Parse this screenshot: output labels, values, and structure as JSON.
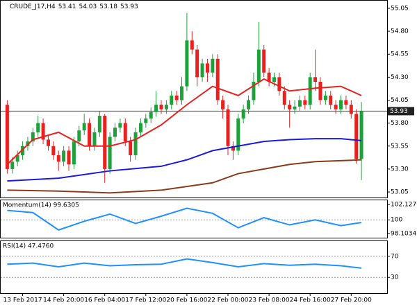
{
  "chart_data": [
    {
      "type": "candlestick",
      "title": "CRUDE_J17,H4",
      "header_values": [
        53.41,
        54.03,
        53.18,
        53.93
      ],
      "up_color": "#1ea03a",
      "down_color": "#e8201f",
      "open": [
        54.0,
        53.3,
        53.38,
        53.45,
        53.55,
        53.6,
        53.7,
        53.8,
        53.62,
        53.55,
        53.45,
        53.38,
        53.5,
        53.35,
        53.6,
        53.72,
        53.8,
        53.55,
        53.7,
        53.88,
        53.3,
        53.65,
        53.75,
        53.8,
        53.6,
        53.45,
        53.7,
        53.8,
        53.85,
        53.92,
        54.0,
        53.95,
        54.0,
        54.1,
        54.05,
        54.2,
        54.7,
        54.6,
        54.3,
        54.45,
        54.35,
        54.5,
        54.05,
        53.95,
        53.55,
        53.5,
        53.85,
        53.95,
        54.05,
        54.25,
        54.6,
        54.35,
        54.25,
        54.3,
        54.15,
        54.0,
        53.95,
        53.98,
        54.05,
        54.0,
        54.3,
        54.25,
        54.05,
        54.1,
        54.0,
        53.95,
        54.05,
        54.0,
        53.9,
        53.41
      ],
      "high": [
        54.05,
        53.43,
        53.5,
        53.6,
        53.65,
        53.75,
        53.88,
        53.85,
        53.67,
        53.6,
        53.5,
        53.55,
        53.55,
        53.65,
        53.77,
        53.9,
        53.85,
        53.75,
        53.93,
        53.9,
        53.7,
        53.8,
        53.85,
        53.85,
        53.65,
        53.75,
        53.85,
        53.9,
        53.97,
        54.15,
        54.05,
        54.05,
        54.15,
        54.15,
        54.3,
        55.0,
        54.8,
        54.65,
        54.5,
        54.5,
        54.55,
        54.55,
        54.1,
        54.0,
        53.6,
        53.9,
        54.0,
        54.1,
        54.35,
        54.9,
        54.65,
        54.4,
        54.35,
        54.35,
        54.2,
        54.05,
        54.05,
        54.1,
        54.1,
        54.35,
        54.6,
        54.3,
        54.15,
        54.15,
        54.05,
        54.1,
        54.1,
        54.05,
        53.95,
        54.03
      ],
      "low": [
        53.25,
        53.25,
        53.33,
        53.4,
        53.5,
        53.55,
        53.65,
        53.57,
        53.5,
        53.4,
        53.28,
        53.33,
        53.28,
        53.3,
        53.55,
        53.67,
        53.5,
        53.5,
        53.65,
        53.15,
        53.25,
        53.6,
        53.7,
        53.55,
        53.38,
        53.4,
        53.65,
        53.75,
        53.8,
        53.87,
        53.9,
        53.9,
        53.95,
        54.0,
        54.0,
        54.15,
        54.55,
        54.2,
        54.25,
        54.25,
        54.3,
        54.0,
        53.85,
        53.45,
        53.4,
        53.45,
        53.8,
        53.9,
        54.0,
        54.2,
        54.3,
        54.2,
        54.2,
        54.1,
        53.95,
        53.75,
        53.9,
        53.93,
        53.95,
        53.95,
        54.15,
        54.0,
        54.0,
        53.95,
        53.9,
        53.9,
        53.95,
        53.85,
        53.36,
        53.18
      ],
      "close": [
        53.3,
        53.38,
        53.45,
        53.55,
        53.6,
        53.7,
        53.8,
        53.62,
        53.55,
        53.45,
        53.38,
        53.5,
        53.35,
        53.6,
        53.72,
        53.8,
        53.55,
        53.7,
        53.88,
        53.3,
        53.65,
        53.75,
        53.8,
        53.6,
        53.45,
        53.7,
        53.8,
        53.85,
        53.92,
        54.0,
        53.95,
        54.0,
        54.1,
        54.05,
        54.2,
        54.7,
        54.6,
        54.3,
        54.45,
        54.35,
        54.5,
        54.05,
        53.95,
        53.55,
        53.5,
        53.85,
        53.95,
        54.05,
        54.25,
        54.6,
        54.35,
        54.25,
        54.3,
        54.15,
        54.0,
        53.95,
        53.98,
        54.05,
        54.0,
        54.3,
        54.25,
        54.05,
        54.1,
        54.0,
        53.95,
        54.05,
        54.0,
        53.9,
        53.41,
        53.93
      ],
      "series": [
        {
          "color": "#e8201f",
          "x": [
            0,
            5,
            10,
            15,
            20,
            25,
            30,
            35,
            40,
            45,
            50,
            55,
            60,
            65,
            69
          ],
          "values": [
            53.35,
            53.62,
            53.7,
            53.55,
            53.55,
            53.62,
            53.78,
            54.0,
            54.2,
            54.1,
            54.28,
            54.15,
            54.18,
            54.2,
            54.1
          ]
        },
        {
          "color": "#1a1adc",
          "x": [
            0,
            10,
            20,
            30,
            35,
            40,
            45,
            50,
            55,
            60,
            65,
            69
          ],
          "values": [
            53.17,
            53.2,
            53.28,
            53.33,
            53.4,
            53.5,
            53.55,
            53.6,
            53.62,
            53.63,
            53.63,
            53.61
          ]
        },
        {
          "color": "#8b3a1a",
          "x": [
            0,
            10,
            20,
            30,
            40,
            45,
            50,
            55,
            60,
            69
          ],
          "values": [
            53.07,
            53.06,
            53.04,
            53.07,
            53.15,
            53.25,
            53.3,
            53.35,
            53.38,
            53.4
          ]
        }
      ],
      "last_price": 53.93,
      "xlim": [
        -1,
        74
      ],
      "ylim": [
        52.99,
        55.14
      ],
      "yticks": [
        55.05,
        {
          "value": 54.8,
          "label": "54.80"
        },
        54.55,
        {
          "value": 54.3,
          "label": "54.30"
        },
        54.05,
        {
          "value": 53.8,
          "label": "53.80"
        },
        53.55,
        {
          "value": 53.3,
          "label": "53.30"
        },
        53.05
      ],
      "xticks": [
        {
          "value": 3,
          "label": "13 Feb 2017"
        },
        {
          "value": 11,
          "label": "14 Feb 20:00"
        },
        {
          "value": 19,
          "label": "16 Feb 04:00"
        },
        {
          "value": 27,
          "label": "17 Feb 12:00"
        },
        {
          "value": 35,
          "label": "20 Feb 16:00"
        },
        {
          "value": 43,
          "label": "22 Feb 00:00"
        },
        {
          "value": 51,
          "label": "23 Feb 08:00"
        },
        {
          "value": 59,
          "label": "24 Feb 16:00"
        },
        {
          "value": 67,
          "label": "27 Feb 20:00"
        }
      ]
    },
    {
      "type": "line",
      "title": "Momentum(14) 99.6305",
      "series": [
        {
          "color": "#1e90ff",
          "x": [
            0,
            5,
            10,
            15,
            20,
            25,
            30,
            35,
            40,
            45,
            50,
            55,
            60,
            65,
            69
          ],
          "values": [
            101.3,
            101.0,
            98.6,
            99.8,
            100.8,
            99.5,
            100.5,
            101.6,
            100.9,
            98.9,
            100.3,
            99.3,
            100.0,
            99.2,
            99.6305
          ]
        }
      ],
      "xlim": [
        -1,
        74
      ],
      "ylim": [
        97.53,
        102.8
      ],
      "yticks": [
        102.1276,
        100,
        98.1034
      ],
      "guides": [
        100
      ]
    },
    {
      "type": "line",
      "title": "RSI(14) 47.4760",
      "series": [
        {
          "color": "#1e90ff",
          "x": [
            0,
            5,
            10,
            15,
            20,
            25,
            30,
            35,
            40,
            45,
            50,
            55,
            60,
            65,
            69
          ],
          "values": [
            55,
            57,
            50,
            57,
            52,
            54,
            55,
            65,
            58,
            50,
            56,
            53,
            55,
            52,
            47.476
          ]
        }
      ],
      "xlim": [
        -1,
        74
      ],
      "ylim": [
        0,
        100
      ],
      "yticks": [
        70,
        30
      ],
      "guides": [
        70,
        30
      ]
    }
  ]
}
